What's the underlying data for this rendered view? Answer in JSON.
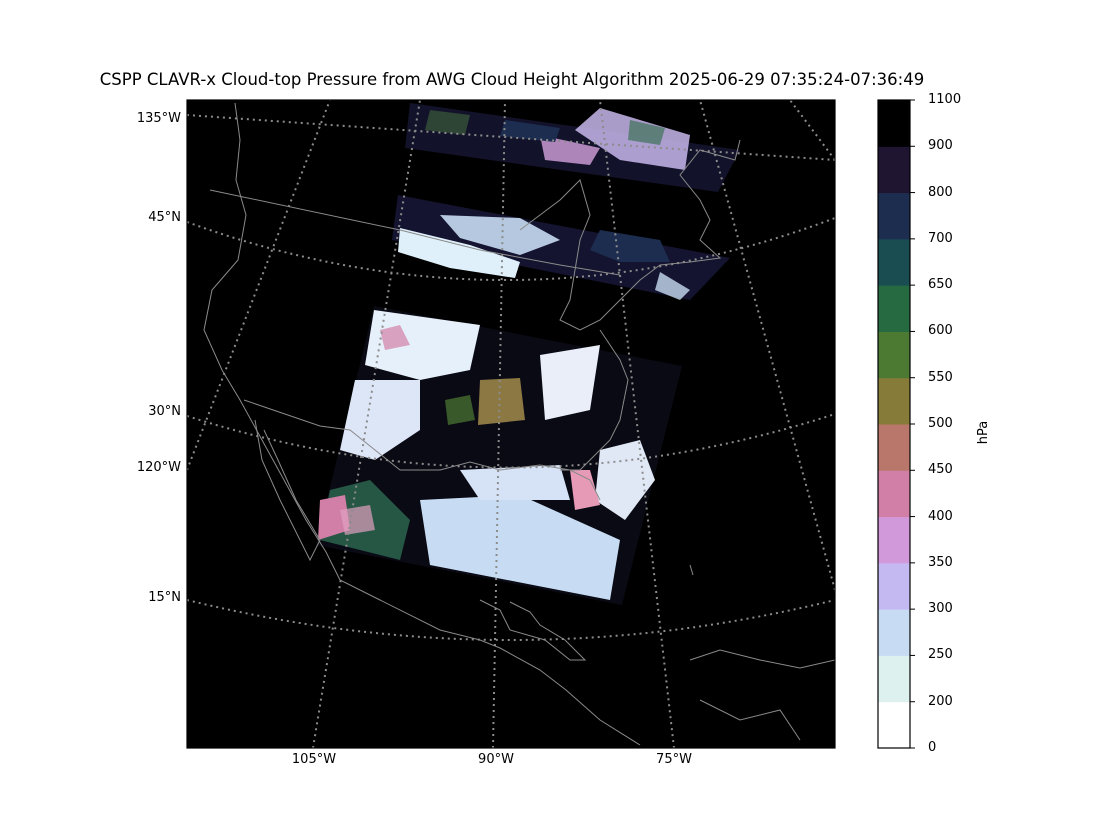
{
  "title": "CSPP CLAVR-x Cloud-top Pressure from AWG Cloud Height Algorithm 2025-06-29 07:35:24-07:36:49",
  "lat_labels": [
    {
      "text": "135°W"
    },
    {
      "text": "45°N"
    },
    {
      "text": "30°N"
    },
    {
      "text": "120°W"
    },
    {
      "text": "15°N"
    }
  ],
  "lon_labels": [
    {
      "text": "105°W"
    },
    {
      "text": "90°W"
    },
    {
      "text": "75°W"
    }
  ],
  "colorbar": {
    "label": "hPa",
    "ticks": [
      "0",
      "200",
      "250",
      "300",
      "350",
      "400",
      "450",
      "500",
      "550",
      "600",
      "650",
      "700",
      "800",
      "900",
      "1100"
    ],
    "colors": [
      "#ffffff",
      "#ddf2ee",
      "#c7dcf3",
      "#c5b9f2",
      "#d198da",
      "#d27fa7",
      "#b9766b",
      "#877b3a",
      "#4d7a33",
      "#266a42",
      "#1a4d52",
      "#1c2d50",
      "#1f1530",
      "#000000"
    ]
  },
  "colors": {
    "map_background": "#000000",
    "coastline": "#8a8a8a",
    "graticule": "#8c8c8c"
  }
}
